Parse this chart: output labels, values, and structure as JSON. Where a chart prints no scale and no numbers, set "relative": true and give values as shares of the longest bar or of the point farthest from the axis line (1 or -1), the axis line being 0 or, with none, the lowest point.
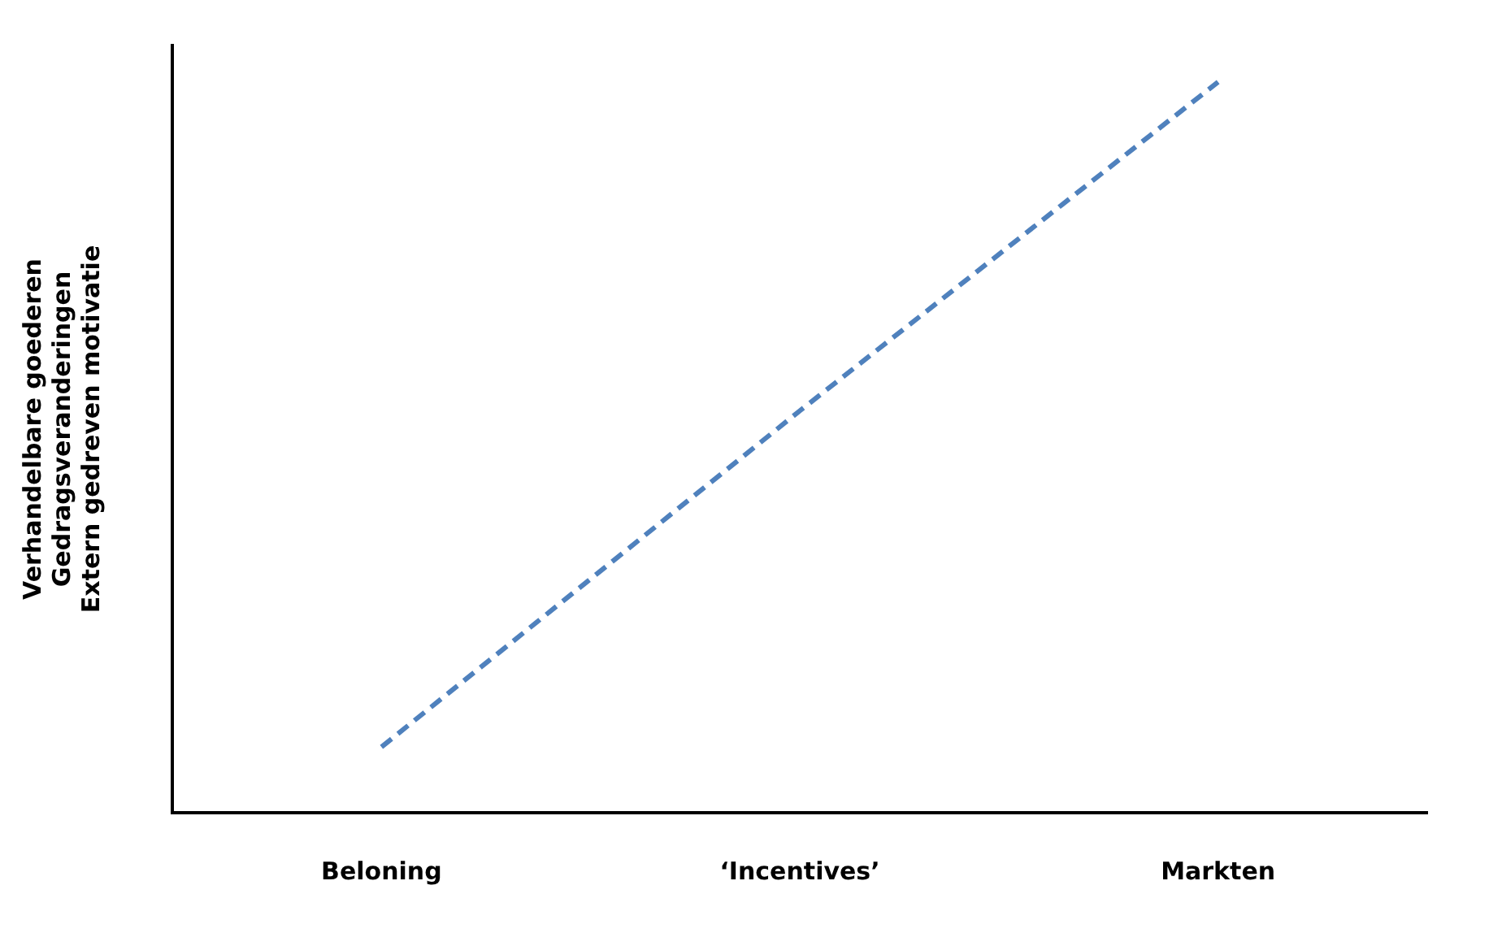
{
  "chart_data": {
    "type": "line",
    "relative": true,
    "ylabel": "Verhandelbare goederen\nGedragsveranderingen\nExtern gedreven motivatie",
    "categories": [
      "Beloning",
      "‘Incentives’",
      "Markten"
    ],
    "series": [
      {
        "color": "#4f81bd",
        "values": [
          0.09,
          0.55,
          1
        ]
      }
    ],
    "line_style": "dashed",
    "marker": "none",
    "grid": false,
    "legend": false
  }
}
